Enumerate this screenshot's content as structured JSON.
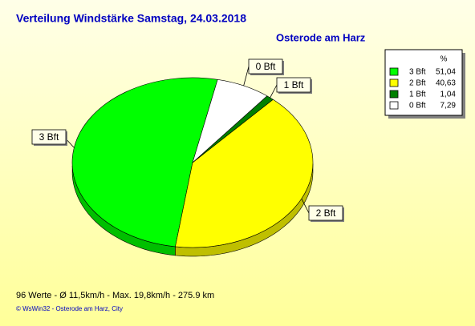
{
  "chart_data": {
    "type": "pie",
    "title": "Verteilung Windstärke  Samstag, 24.03.2018",
    "subtitle": "Osterode am Harz",
    "categories": [
      "3 Bft",
      "2 Bft",
      "1 Bft",
      "0 Bft"
    ],
    "values": [
      51.04,
      40.63,
      1.04,
      7.29
    ],
    "value_labels": [
      "51,04",
      "40,63",
      "1,04",
      "7,29"
    ],
    "colors": [
      "#00ff00",
      "#ffff00",
      "#008000",
      "#ffffff"
    ],
    "legend_title": "%",
    "legend": "top-right",
    "footer": "96 Werte   -   Ø 11,5km/h  -  Max. 19,8km/h   -   275.9 km",
    "credit": "© WsWin32  -  Osterode am Harz, City"
  }
}
